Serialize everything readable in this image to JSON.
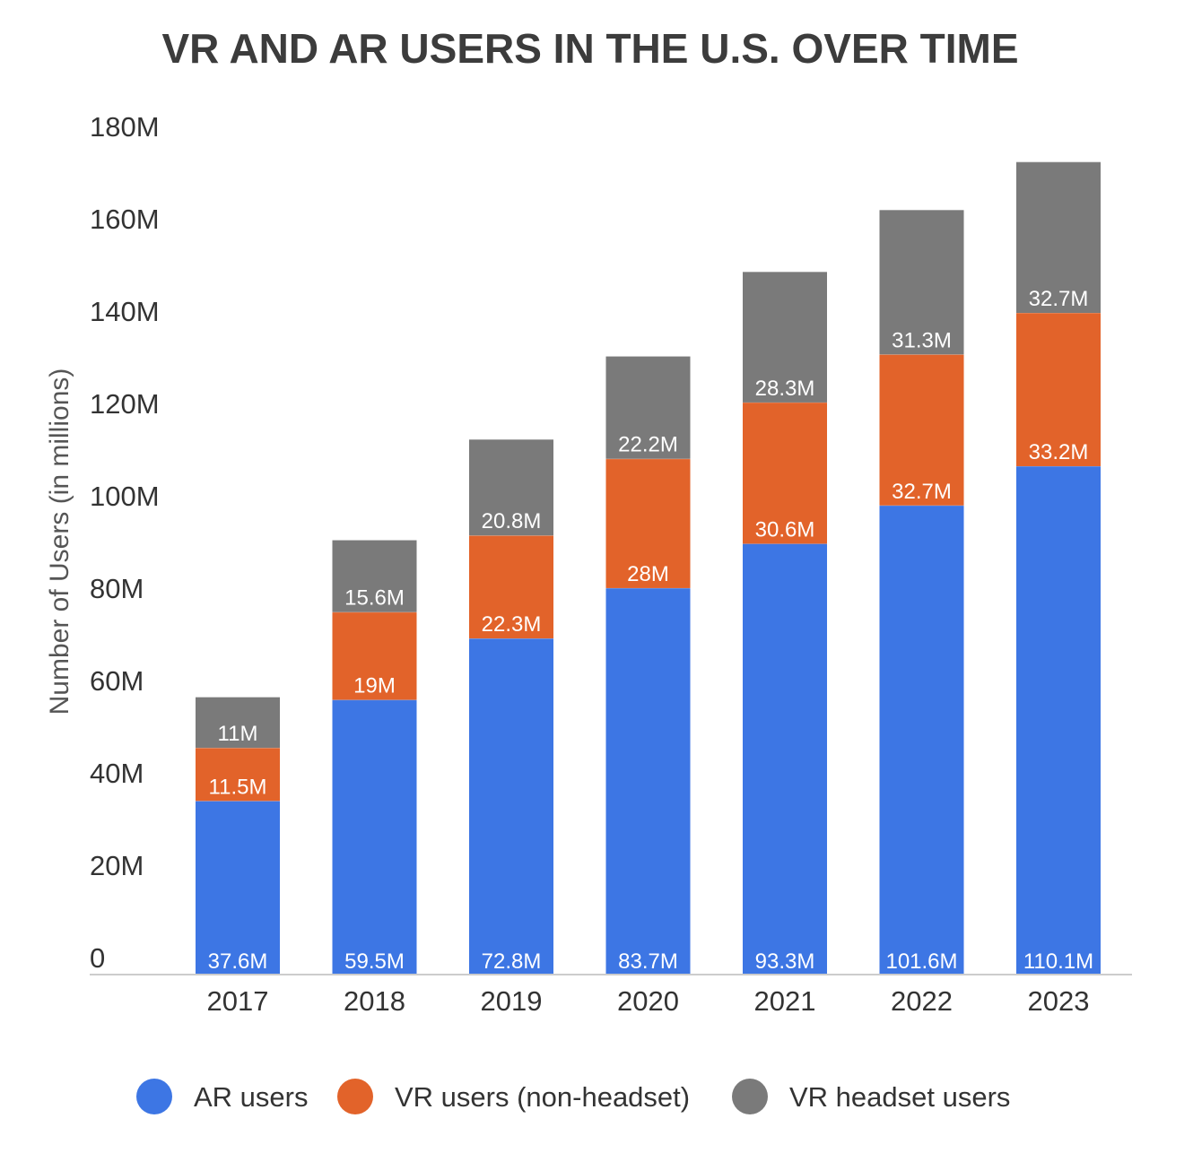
{
  "chart_data": {
    "type": "bar",
    "stacked": true,
    "title": "VR AND AR USERS IN THE U.S. OVER TIME",
    "ylabel": "Number of Users (in millions)",
    "xlabel": "",
    "categories": [
      "2017",
      "2018",
      "2019",
      "2020",
      "2021",
      "2022",
      "2023"
    ],
    "ylim": [
      0,
      180
    ],
    "yticks": [
      {
        "value": 0,
        "label": "0"
      },
      {
        "value": 20,
        "label": "20M"
      },
      {
        "value": 40,
        "label": "40M"
      },
      {
        "value": 60,
        "label": "60M"
      },
      {
        "value": 80,
        "label": "80M"
      },
      {
        "value": 100,
        "label": "100M"
      },
      {
        "value": 120,
        "label": "120M"
      },
      {
        "value": 140,
        "label": "140M"
      },
      {
        "value": 160,
        "label": "160M"
      },
      {
        "value": 180,
        "label": "180M"
      }
    ],
    "grid": false,
    "legend_position": "bottom",
    "series": [
      {
        "name": "AR users",
        "color": "#3d76e4",
        "values": [
          37.6,
          59.5,
          72.8,
          83.7,
          93.3,
          101.6,
          110.1
        ],
        "labels": [
          "37.6M",
          "59.5M",
          "72.8M",
          "83.7M",
          "93.3M",
          "101.6M",
          "110.1M"
        ]
      },
      {
        "name": "VR users (non-headset)",
        "color": "#e2632a",
        "values": [
          11.5,
          19,
          22.3,
          28,
          30.6,
          32.7,
          33.2
        ],
        "labels": [
          "11.5M",
          "19M",
          "22.3M",
          "28M",
          "30.6M",
          "32.7M",
          "33.2M"
        ]
      },
      {
        "name": "VR headset users",
        "color": "#7a7a7a",
        "values": [
          11,
          15.6,
          20.8,
          22.2,
          28.3,
          31.3,
          32.7
        ],
        "labels": [
          "11M",
          "15.6M",
          "20.8M",
          "22.2M",
          "28.3M",
          "31.3M",
          "32.7M"
        ]
      }
    ]
  }
}
